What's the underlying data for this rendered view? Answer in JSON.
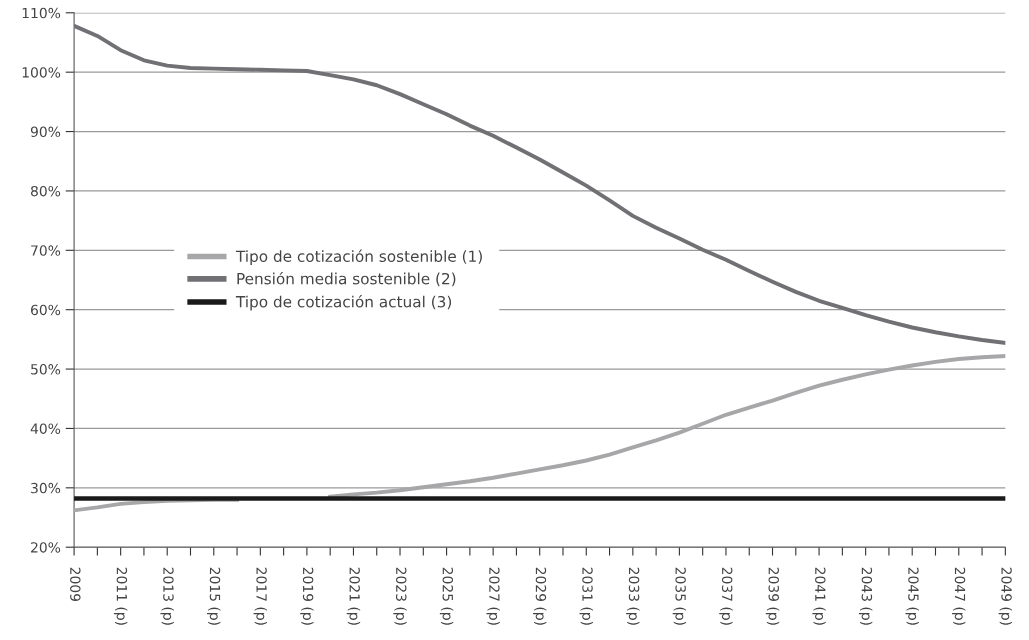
{
  "chart_data": {
    "type": "line",
    "categories": [
      "2009",
      null,
      "2011 (p)",
      null,
      "2013 (p)",
      null,
      "2015 (p)",
      null,
      "2017 (p)",
      null,
      "2019 (p)",
      null,
      "2021 (p)",
      null,
      "2023 (p)",
      null,
      "2025 (p)",
      null,
      "2027 (p)",
      null,
      "2029 (p)",
      null,
      "2031 (p)",
      null,
      "2033 (p)",
      null,
      "2035 (p)",
      null,
      "2037 (p)",
      null,
      "2039 (p)",
      null,
      "2041 (p)",
      null,
      "2043 (p)",
      null,
      "2045 (p)",
      null,
      "2047 (p)",
      null,
      "2049 (p)"
    ],
    "series": [
      {
        "name": "Tipo de cotización sostenible (1)",
        "color": "#a7a7a9",
        "values": [
          26.2,
          26.7,
          27.3,
          27.6,
          27.8,
          27.9,
          28.0,
          28.0,
          null,
          null,
          null,
          28.5,
          28.9,
          29.2,
          29.6,
          30.1,
          30.6,
          31.1,
          31.7,
          32.4,
          33.1,
          33.8,
          34.6,
          35.6,
          36.8,
          38.0,
          39.3,
          40.8,
          42.3,
          43.5,
          44.7,
          46.0,
          47.2,
          48.2,
          49.1,
          49.9,
          50.6,
          51.2,
          51.7,
          52.0,
          52.2
        ]
      },
      {
        "name": "Pensión media sostenible (2)",
        "color": "#707075",
        "values": [
          107.8,
          106.1,
          103.7,
          102.0,
          101.1,
          100.7,
          100.6,
          100.5,
          100.4,
          100.3,
          100.2,
          99.5,
          98.8,
          97.8,
          96.3,
          94.6,
          92.9,
          91.0,
          89.3,
          87.3,
          85.3,
          83.1,
          80.9,
          78.4,
          75.8,
          73.8,
          72.0,
          70.1,
          68.4,
          66.5,
          64.7,
          63.0,
          61.5,
          60.3,
          59.1,
          58.0,
          57.0,
          56.2,
          55.5,
          54.9,
          54.4
        ]
      },
      {
        "name": "Tipo de cotización actual (3)",
        "color": "#1a1a1a",
        "values": [
          28.2,
          28.2,
          28.2,
          28.2,
          28.2,
          28.2,
          28.2,
          28.2,
          28.2,
          28.2,
          28.2,
          28.2,
          28.2,
          28.2,
          28.2,
          28.2,
          28.2,
          28.2,
          28.2,
          28.2,
          28.2,
          28.2,
          28.2,
          28.2,
          28.2,
          28.2,
          28.2,
          28.2,
          28.2,
          28.2,
          28.2,
          28.2,
          28.2,
          28.2,
          28.2,
          28.2,
          28.2,
          28.2,
          28.2,
          28.2,
          28.2
        ]
      }
    ],
    "ylim": [
      20,
      110
    ],
    "yticks": [
      {
        "value": 20,
        "label": "20%"
      },
      {
        "value": 30,
        "label": "30%"
      },
      {
        "value": 40,
        "label": "40%"
      },
      {
        "value": 50,
        "label": "50%"
      },
      {
        "value": 60,
        "label": "60%"
      },
      {
        "value": 70,
        "label": "70%"
      },
      {
        "value": 80,
        "label": "80%"
      },
      {
        "value": 90,
        "label": "90%"
      },
      {
        "value": 100,
        "label": "100%"
      },
      {
        "value": 110,
        "label": "110%"
      }
    ],
    "grid": "y",
    "legend": "left",
    "marker": "none",
    "line_style": "solid"
  }
}
